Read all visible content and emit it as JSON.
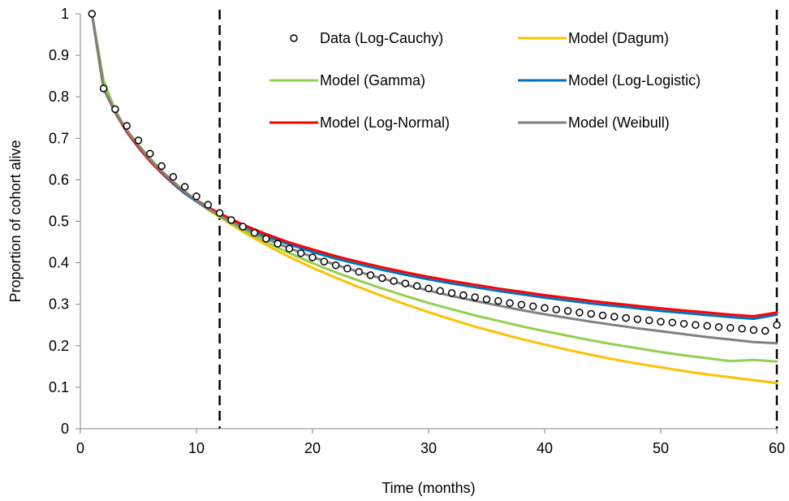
{
  "chart_data": {
    "type": "line",
    "title": "",
    "xlabel": "Time (months)",
    "ylabel": "Proportion of cohort alive",
    "xlim": [
      0,
      60
    ],
    "ylim": [
      0,
      1
    ],
    "x_ticks": [
      "0",
      "10",
      "20",
      "30",
      "40",
      "50",
      "60"
    ],
    "y_ticks": [
      "0",
      "0.1",
      "0.2",
      "0.3",
      "0.4",
      "0.5",
      "0.6",
      "0.7",
      "0.8",
      "0.9",
      "1"
    ],
    "grid": false,
    "legend_placement": "top-center",
    "vertical_reference_lines": [
      12,
      60
    ],
    "data_series": {
      "name": "Data (Log-Cauchy)",
      "marker": "open-circle",
      "x": [
        1,
        2,
        3,
        4,
        5,
        6,
        7,
        8,
        9,
        10,
        11,
        12,
        13,
        14,
        15,
        16,
        17,
        18,
        19,
        20,
        21,
        22,
        23,
        24,
        25,
        26,
        27,
        28,
        29,
        30,
        31,
        32,
        33,
        34,
        35,
        36,
        37,
        38,
        39,
        40,
        41,
        42,
        43,
        44,
        45,
        46,
        47,
        48,
        49,
        50,
        51,
        52,
        53,
        54,
        55,
        56,
        57,
        58,
        59,
        60
      ],
      "y": [
        1.0,
        0.82,
        0.77,
        0.73,
        0.695,
        0.663,
        0.633,
        0.607,
        0.583,
        0.56,
        0.54,
        0.52,
        0.503,
        0.487,
        0.472,
        0.458,
        0.446,
        0.434,
        0.423,
        0.413,
        0.403,
        0.394,
        0.386,
        0.378,
        0.37,
        0.363,
        0.356,
        0.35,
        0.344,
        0.338,
        0.332,
        0.327,
        0.322,
        0.317,
        0.312,
        0.308,
        0.303,
        0.299,
        0.295,
        0.291,
        0.287,
        0.284,
        0.28,
        0.277,
        0.273,
        0.27,
        0.267,
        0.264,
        0.261,
        0.258,
        0.256,
        0.253,
        0.25,
        0.248,
        0.245,
        0.243,
        0.241,
        0.238,
        0.236,
        0.25
      ]
    },
    "series": [
      {
        "name": "Model (Dagum)",
        "color": "#FFC000",
        "x": [
          1,
          2,
          3,
          4,
          5,
          6,
          7,
          8,
          9,
          10,
          11,
          12,
          14,
          16,
          18,
          20,
          22,
          24,
          26,
          28,
          30,
          32,
          34,
          36,
          38,
          40,
          42,
          44,
          46,
          48,
          50,
          52,
          54,
          56,
          58,
          60
        ],
        "y": [
          1.0,
          0.82,
          0.765,
          0.72,
          0.685,
          0.652,
          0.622,
          0.595,
          0.57,
          0.548,
          0.528,
          0.51,
          0.475,
          0.443,
          0.414,
          0.388,
          0.364,
          0.341,
          0.32,
          0.3,
          0.281,
          0.263,
          0.246,
          0.231,
          0.216,
          0.203,
          0.19,
          0.178,
          0.167,
          0.157,
          0.148,
          0.139,
          0.131,
          0.124,
          0.117,
          0.11
        ]
      },
      {
        "name": "Model (Gamma)",
        "color": "#92D050",
        "x": [
          1,
          2,
          3,
          4,
          5,
          6,
          7,
          8,
          9,
          10,
          11,
          12,
          14,
          16,
          18,
          20,
          22,
          24,
          26,
          28,
          30,
          32,
          34,
          36,
          38,
          40,
          42,
          44,
          46,
          48,
          50,
          52,
          54,
          56,
          58,
          60
        ],
        "y": [
          1.0,
          0.84,
          0.768,
          0.72,
          0.684,
          0.652,
          0.622,
          0.596,
          0.572,
          0.55,
          0.53,
          0.512,
          0.479,
          0.45,
          0.423,
          0.399,
          0.377,
          0.357,
          0.338,
          0.32,
          0.303,
          0.288,
          0.273,
          0.26,
          0.247,
          0.235,
          0.224,
          0.213,
          0.203,
          0.194,
          0.185,
          0.177,
          0.17,
          0.163,
          0.166,
          0.162
        ]
      },
      {
        "name": "Model (Log-Logistic)",
        "color": "#0070C0",
        "x": [
          1,
          2,
          3,
          4,
          5,
          6,
          7,
          8,
          9,
          10,
          11,
          12,
          14,
          16,
          18,
          20,
          22,
          24,
          26,
          28,
          30,
          32,
          34,
          36,
          38,
          40,
          42,
          44,
          46,
          48,
          50,
          52,
          54,
          56,
          58,
          60
        ],
        "y": [
          1.0,
          0.82,
          0.762,
          0.715,
          0.678,
          0.645,
          0.616,
          0.59,
          0.567,
          0.548,
          0.53,
          0.515,
          0.487,
          0.464,
          0.444,
          0.426,
          0.41,
          0.396,
          0.383,
          0.371,
          0.36,
          0.35,
          0.341,
          0.332,
          0.324,
          0.316,
          0.309,
          0.302,
          0.296,
          0.29,
          0.284,
          0.279,
          0.274,
          0.269,
          0.265,
          0.275
        ]
      },
      {
        "name": "Model (Log-Normal)",
        "color": "#FF0000",
        "x": [
          1,
          2,
          3,
          4,
          5,
          6,
          7,
          8,
          9,
          10,
          11,
          12,
          14,
          16,
          18,
          20,
          22,
          24,
          26,
          28,
          30,
          32,
          34,
          36,
          38,
          40,
          42,
          44,
          46,
          48,
          50,
          52,
          54,
          56,
          58,
          60
        ],
        "y": [
          1.0,
          0.82,
          0.762,
          0.715,
          0.678,
          0.645,
          0.617,
          0.592,
          0.57,
          0.551,
          0.534,
          0.519,
          0.492,
          0.469,
          0.449,
          0.432,
          0.416,
          0.402,
          0.389,
          0.377,
          0.366,
          0.356,
          0.347,
          0.338,
          0.33,
          0.322,
          0.315,
          0.308,
          0.302,
          0.296,
          0.29,
          0.285,
          0.28,
          0.275,
          0.271,
          0.28
        ]
      },
      {
        "name": "Model (Weibull)",
        "color": "#808080",
        "x": [
          1,
          2,
          3,
          4,
          5,
          6,
          7,
          8,
          9,
          10,
          11,
          12,
          14,
          16,
          18,
          20,
          22,
          24,
          26,
          28,
          30,
          32,
          34,
          36,
          38,
          40,
          42,
          44,
          46,
          48,
          50,
          52,
          54,
          56,
          58,
          60
        ],
        "y": [
          1.0,
          0.82,
          0.764,
          0.718,
          0.682,
          0.649,
          0.62,
          0.594,
          0.571,
          0.55,
          0.531,
          0.514,
          0.484,
          0.458,
          0.435,
          0.414,
          0.395,
          0.378,
          0.362,
          0.347,
          0.333,
          0.32,
          0.308,
          0.297,
          0.286,
          0.276,
          0.267,
          0.258,
          0.25,
          0.242,
          0.235,
          0.228,
          0.221,
          0.215,
          0.209,
          0.206
        ]
      }
    ]
  }
}
